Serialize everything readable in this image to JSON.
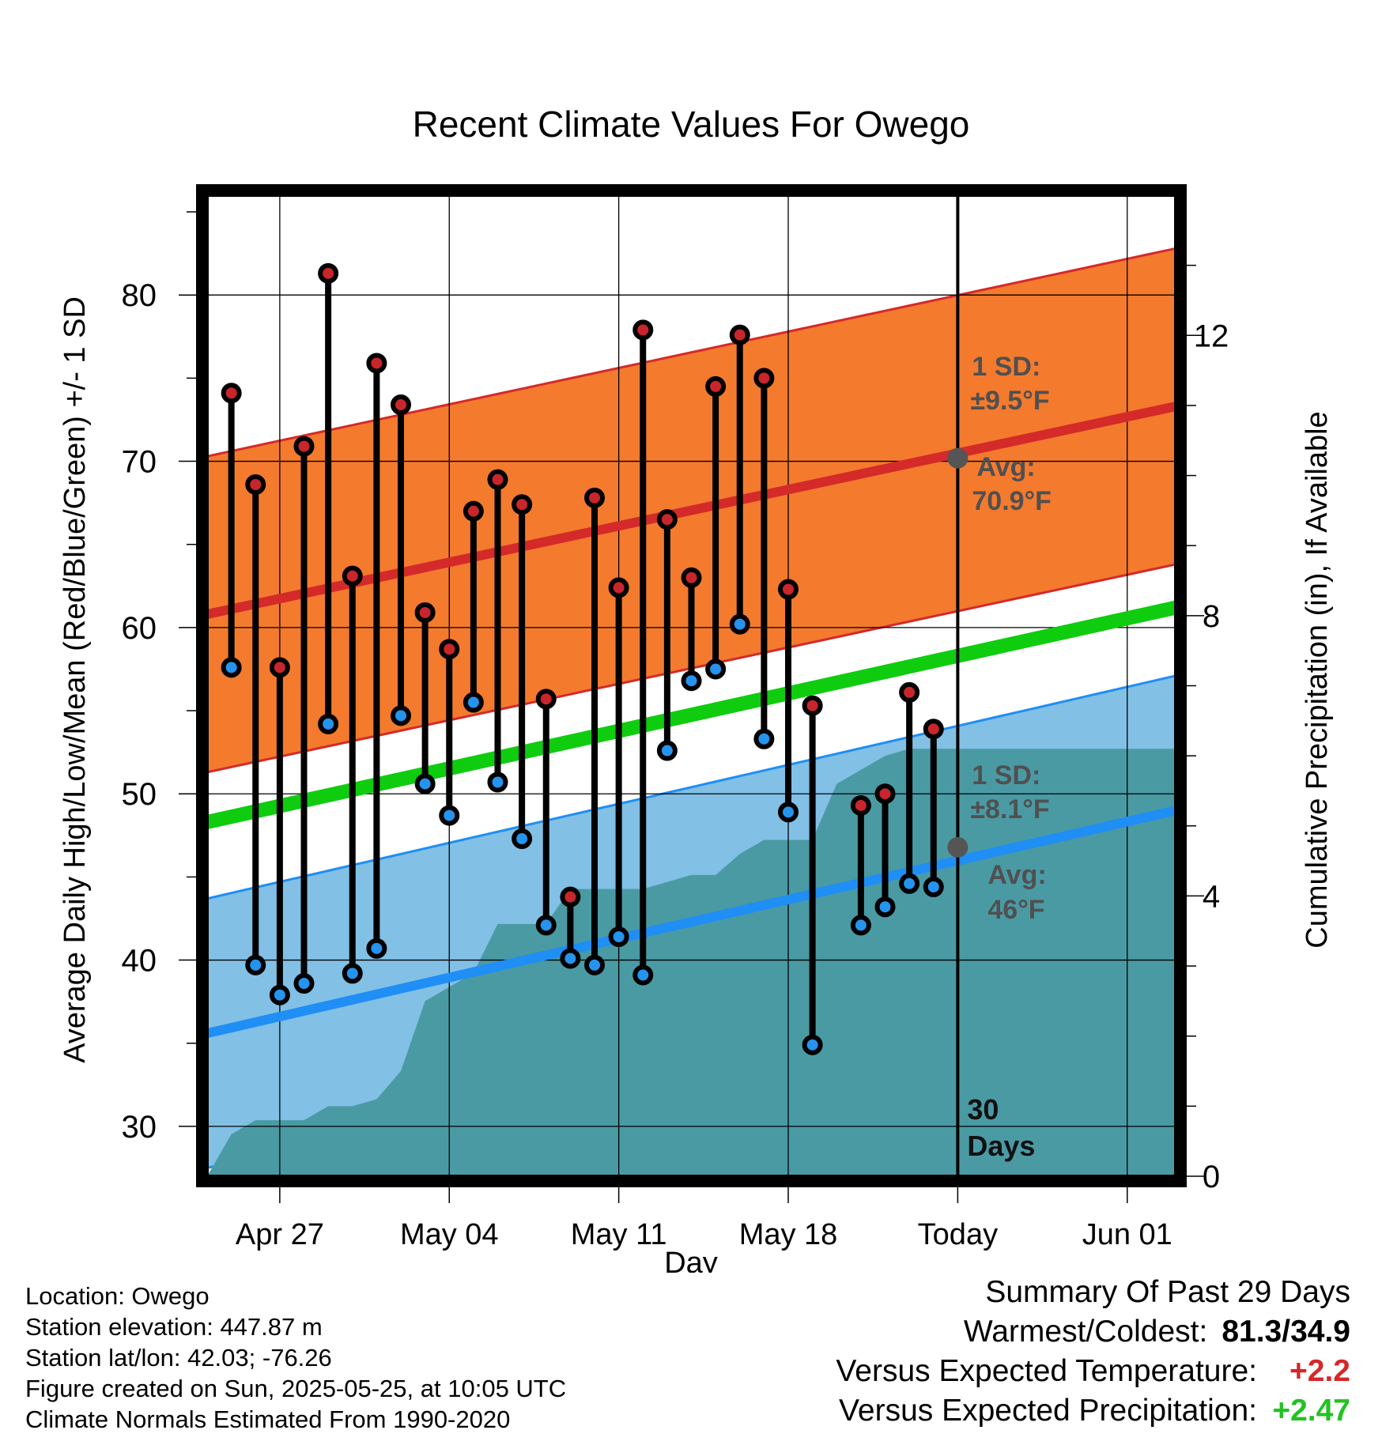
{
  "chart_data": {
    "type": "line",
    "title": "Recent Climate Values For Owego",
    "xlabel": "Day",
    "ylabel": "Average Daily High/Low/Mean (Red/Blue/Green) +/- 1 SD",
    "y2label": "Cumulative Precipitation (in), If Available",
    "ylim": [
      27,
      86
    ],
    "y2lim": [
      0,
      14
    ],
    "yticks": [
      30,
      40,
      50,
      60,
      70,
      80
    ],
    "y2ticks": [
      0,
      4,
      8,
      12
    ],
    "xticks": [
      "Apr 27",
      "May 04",
      "May 11",
      "May 18",
      "Today",
      "Jun 01"
    ],
    "x_range_days": [
      "2025-04-24",
      "2025-06-03"
    ],
    "today": "2025-05-25",
    "grid": true,
    "dates": [
      "Apr 25",
      "Apr 26",
      "Apr 27",
      "Apr 28",
      "Apr 29",
      "Apr 30",
      "May 01",
      "May 02",
      "May 03",
      "May 04",
      "May 05",
      "May 06",
      "May 07",
      "May 08",
      "May 09",
      "May 10",
      "May 11",
      "May 12",
      "May 13",
      "May 14",
      "May 15",
      "May 16",
      "May 17",
      "May 18",
      "May 19",
      "May 20",
      "May 21",
      "May 22",
      "May 23",
      "May 24"
    ],
    "highs": [
      74.1,
      68.6,
      57.6,
      70.9,
      81.3,
      63.1,
      75.9,
      73.4,
      60.9,
      58.7,
      67.0,
      68.9,
      67.4,
      55.7,
      43.8,
      67.8,
      62.4,
      77.9,
      66.5,
      63.0,
      74.5,
      77.6,
      75.0,
      62.3,
      55.3,
      null,
      49.3,
      50.0,
      56.1,
      53.9
    ],
    "lows": [
      57.6,
      39.7,
      37.9,
      38.6,
      54.2,
      39.2,
      40.7,
      54.7,
      50.6,
      48.7,
      55.5,
      50.7,
      47.3,
      42.1,
      40.1,
      39.7,
      41.4,
      39.1,
      52.6,
      56.8,
      57.5,
      60.2,
      53.3,
      48.9,
      34.9,
      null,
      42.1,
      43.2,
      44.6,
      44.4
    ],
    "normal_high": {
      "start": 60.8,
      "end": 73.3
    },
    "normal_low": {
      "start": 35.6,
      "end": 49.0
    },
    "normal_mean": {
      "start": 48.3,
      "end": 61.2
    },
    "sd_high": 9.5,
    "sd_low": 8.1,
    "precip_cumulative": [
      0,
      0.6,
      0.8,
      0.8,
      0.8,
      1.0,
      1.0,
      1.1,
      1.5,
      2.5,
      2.7,
      2.9,
      3.6,
      3.6,
      3.6,
      4.1,
      4.1,
      4.1,
      4.1,
      4.2,
      4.3,
      4.3,
      4.6,
      4.8,
      4.8,
      4.8,
      5.6,
      5.8,
      6.0,
      6.1,
      6.1
    ],
    "precip_final": 6.1,
    "annotations": {
      "sd_high_label": "1 SD:",
      "sd_high_value": "±9.5°F",
      "avg_high_label": "Avg:",
      "avg_high_value": "70.9°F",
      "sd_low_label": "1 SD:",
      "sd_low_value": "±8.1°F",
      "avg_low_label": "Avg:",
      "avg_low_value": "46°F",
      "days_number": "30",
      "days_word": "Days"
    },
    "colors": {
      "high_band": "#f47a2e",
      "high_line": "#d42a2a",
      "low_band": "#82c0e6",
      "low_line": "#1f8ef5",
      "mean_line": "#0fcc0f",
      "precip": "#4a9aa4",
      "high_marker": "#c8262c",
      "low_marker": "#2594ee",
      "annotation_text": "#505050"
    }
  },
  "info": {
    "location": "Location: Owego",
    "elevation": "Station elevation: 447.87 m",
    "latlon": "Station lat/lon: 42.03; -76.26",
    "created": "Figure created on Sun, 2025-05-25, at 10:05 UTC",
    "normals": "Climate Normals Estimated From 1990-2020"
  },
  "summary": {
    "title": "Summary Of Past 29 Days",
    "warm_cold_label": "Warmest/Coldest:",
    "warm_cold_value": "81.3/34.9",
    "temp_label": "Versus Expected Temperature:",
    "temp_value": "+2.2",
    "precip_label": "Versus Expected Precipitation:",
    "precip_value": "+2.47"
  }
}
